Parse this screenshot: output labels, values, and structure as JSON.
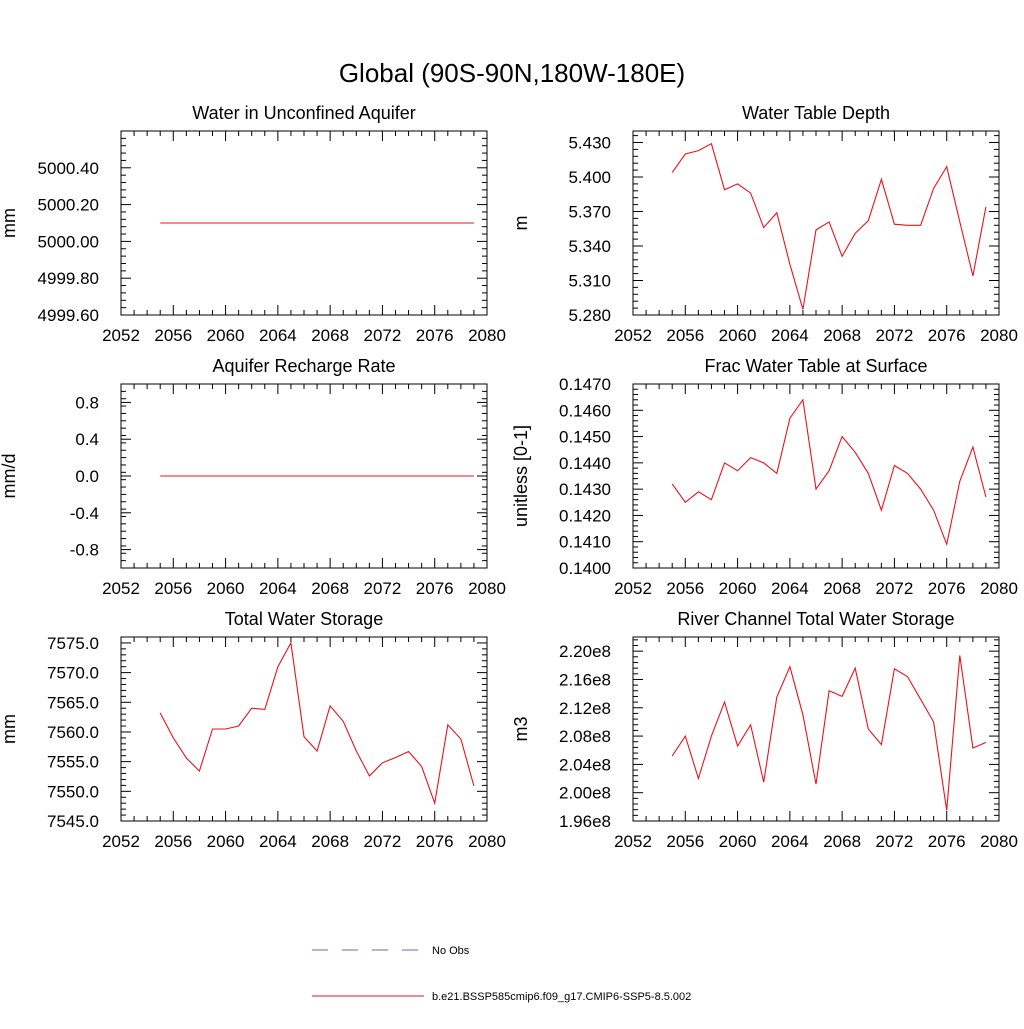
{
  "figure_title": "Global (90S-90N,180W-180E)",
  "colors": {
    "model": "#e8141c",
    "obs": "#5b6fb8",
    "axis": "#000000"
  },
  "legend": {
    "entries": [
      {
        "label": "No Obs",
        "style": "dashed",
        "color": "#5b6fb8"
      },
      {
        "label": "b.e21.BSSP585cmip6.f09_g17.CMIP6-SSP5-8.5.002",
        "style": "solid",
        "color": "#e8141c"
      }
    ]
  },
  "chart_data": [
    {
      "type": "line",
      "title": "Water in Unconfined Aquifer",
      "ylabel": "mm",
      "xlabel": "",
      "xlim": [
        2052,
        2080
      ],
      "ylim": [
        4999.6,
        5000.6
      ],
      "xticks": [
        2052,
        2056,
        2060,
        2064,
        2068,
        2072,
        2076,
        2080
      ],
      "xtick_labels": [
        "2052",
        "2056",
        "2060",
        "2064",
        "2068",
        "2072",
        "2076",
        "2080"
      ],
      "yticks": [
        4999.6,
        4999.8,
        5000.0,
        5000.2,
        5000.4
      ],
      "ytick_labels": [
        "4999.60",
        "4999.80",
        "5000.00",
        "5000.20",
        "5000.40"
      ],
      "series": [
        {
          "x": [
            2055,
            2056,
            2057,
            2058,
            2059,
            2060,
            2061,
            2062,
            2063,
            2064,
            2065,
            2066,
            2067,
            2068,
            2069,
            2070,
            2071,
            2072,
            2073,
            2074,
            2075,
            2076,
            2077,
            2078,
            2079
          ],
          "values": [
            5000.1,
            5000.1,
            5000.1,
            5000.1,
            5000.1,
            5000.1,
            5000.1,
            5000.1,
            5000.1,
            5000.1,
            5000.1,
            5000.1,
            5000.1,
            5000.1,
            5000.1,
            5000.1,
            5000.1,
            5000.1,
            5000.1,
            5000.1,
            5000.1,
            5000.1,
            5000.1,
            5000.1,
            5000.1
          ]
        }
      ]
    },
    {
      "type": "line",
      "title": "Water Table Depth",
      "ylabel": "m",
      "xlabel": "",
      "xlim": [
        2052,
        2080
      ],
      "ylim": [
        5.28,
        5.44
      ],
      "xticks": [
        2052,
        2056,
        2060,
        2064,
        2068,
        2072,
        2076,
        2080
      ],
      "xtick_labels": [
        "2052",
        "2056",
        "2060",
        "2064",
        "2068",
        "2072",
        "2076",
        "2080"
      ],
      "yticks": [
        5.28,
        5.31,
        5.34,
        5.37,
        5.4,
        5.43
      ],
      "ytick_labels": [
        "5.280",
        "5.310",
        "5.340",
        "5.370",
        "5.400",
        "5.430"
      ],
      "series": [
        {
          "x": [
            2055,
            2056,
            2057,
            2058,
            2059,
            2060,
            2061,
            2062,
            2063,
            2064,
            2065,
            2066,
            2067,
            2068,
            2069,
            2070,
            2071,
            2072,
            2073,
            2074,
            2075,
            2076,
            2077,
            2078,
            2079
          ],
          "values": [
            5.404,
            5.42,
            5.423,
            5.429,
            5.389,
            5.394,
            5.386,
            5.356,
            5.369,
            5.324,
            5.285,
            5.354,
            5.361,
            5.331,
            5.351,
            5.362,
            5.398,
            5.359,
            5.358,
            5.358,
            5.39,
            5.409,
            5.361,
            5.314,
            5.374
          ]
        }
      ]
    },
    {
      "type": "line",
      "title": "Aquifer Recharge Rate",
      "ylabel": "mm/d",
      "xlabel": "",
      "xlim": [
        2052,
        2080
      ],
      "ylim": [
        -1.0,
        1.0
      ],
      "xticks": [
        2052,
        2056,
        2060,
        2064,
        2068,
        2072,
        2076,
        2080
      ],
      "xtick_labels": [
        "2052",
        "2056",
        "2060",
        "2064",
        "2068",
        "2072",
        "2076",
        "2080"
      ],
      "yticks": [
        -0.8,
        -0.4,
        0.0,
        0.4,
        0.8
      ],
      "ytick_labels": [
        "-0.8",
        "-0.4",
        "0.0",
        "0.4",
        "0.8"
      ],
      "series": [
        {
          "x": [
            2055,
            2056,
            2057,
            2058,
            2059,
            2060,
            2061,
            2062,
            2063,
            2064,
            2065,
            2066,
            2067,
            2068,
            2069,
            2070,
            2071,
            2072,
            2073,
            2074,
            2075,
            2076,
            2077,
            2078,
            2079
          ],
          "values": [
            0,
            0,
            0,
            0,
            0,
            0,
            0,
            0,
            0,
            0,
            0,
            0,
            0,
            0,
            0,
            0,
            0,
            0,
            0,
            0,
            0,
            0,
            0,
            0,
            0
          ]
        }
      ]
    },
    {
      "type": "line",
      "title": "Frac Water Table at Surface",
      "ylabel": "unitless [0-1]",
      "xlabel": "",
      "xlim": [
        2052,
        2080
      ],
      "ylim": [
        0.14,
        0.147
      ],
      "xticks": [
        2052,
        2056,
        2060,
        2064,
        2068,
        2072,
        2076,
        2080
      ],
      "xtick_labels": [
        "2052",
        "2056",
        "2060",
        "2064",
        "2068",
        "2072",
        "2076",
        "2080"
      ],
      "yticks": [
        0.14,
        0.141,
        0.142,
        0.143,
        0.144,
        0.145,
        0.146,
        0.147
      ],
      "ytick_labels": [
        "0.1400",
        "0.1410",
        "0.1420",
        "0.1430",
        "0.1440",
        "0.1450",
        "0.1460",
        "0.1470"
      ],
      "series": [
        {
          "x": [
            2055,
            2056,
            2057,
            2058,
            2059,
            2060,
            2061,
            2062,
            2063,
            2064,
            2065,
            2066,
            2067,
            2068,
            2069,
            2070,
            2071,
            2072,
            2073,
            2074,
            2075,
            2076,
            2077,
            2078,
            2079
          ],
          "values": [
            0.1432,
            0.1425,
            0.1429,
            0.1426,
            0.144,
            0.1437,
            0.1442,
            0.144,
            0.1436,
            0.1457,
            0.1464,
            0.143,
            0.1437,
            0.145,
            0.1444,
            0.1436,
            0.1422,
            0.1439,
            0.1436,
            0.143,
            0.1422,
            0.1409,
            0.1433,
            0.1446,
            0.1427
          ]
        }
      ]
    },
    {
      "type": "line",
      "title": "Total Water Storage",
      "ylabel": "mm",
      "xlabel": "",
      "xlim": [
        2052,
        2080
      ],
      "ylim": [
        7545,
        7576
      ],
      "xticks": [
        2052,
        2056,
        2060,
        2064,
        2068,
        2072,
        2076,
        2080
      ],
      "xtick_labels": [
        "2052",
        "2056",
        "2060",
        "2064",
        "2068",
        "2072",
        "2076",
        "2080"
      ],
      "yticks": [
        7545,
        7550,
        7555,
        7560,
        7565,
        7570,
        7575
      ],
      "ytick_labels": [
        "7545.0",
        "7550.0",
        "7555.0",
        "7560.0",
        "7565.0",
        "7570.0",
        "7575.0"
      ],
      "series": [
        {
          "x": [
            2055,
            2056,
            2057,
            2058,
            2059,
            2060,
            2061,
            2062,
            2063,
            2064,
            2065,
            2066,
            2067,
            2068,
            2069,
            2070,
            2071,
            2072,
            2073,
            2074,
            2075,
            2076,
            2077,
            2078,
            2079
          ],
          "values": [
            7563.2,
            7559.0,
            7555.6,
            7553.4,
            7560.5,
            7560.5,
            7561.0,
            7564.0,
            7563.8,
            7571.0,
            7575.0,
            7559.2,
            7556.8,
            7564.4,
            7561.8,
            7556.8,
            7552.6,
            7554.8,
            7555.7,
            7556.7,
            7554.2,
            7548.0,
            7561.2,
            7558.8,
            7550.9
          ]
        }
      ]
    },
    {
      "type": "line",
      "title": "River Channel Total Water Storage",
      "ylabel": "m3",
      "xlabel": "",
      "xlim": [
        2052,
        2080
      ],
      "ylim": [
        196000000,
        222000000
      ],
      "xticks": [
        2052,
        2056,
        2060,
        2064,
        2068,
        2072,
        2076,
        2080
      ],
      "xtick_labels": [
        "2052",
        "2056",
        "2060",
        "2064",
        "2068",
        "2072",
        "2076",
        "2080"
      ],
      "yticks": [
        196000000,
        200000000,
        204000000,
        208000000,
        212000000,
        216000000,
        220000000
      ],
      "ytick_labels": [
        "1.96e8",
        "2.00e8",
        "2.04e8",
        "2.08e8",
        "2.12e8",
        "2.16e8",
        "2.20e8"
      ],
      "series": [
        {
          "x": [
            2055,
            2056,
            2057,
            2058,
            2059,
            2060,
            2061,
            2062,
            2063,
            2064,
            2065,
            2066,
            2067,
            2068,
            2069,
            2070,
            2071,
            2072,
            2073,
            2074,
            2075,
            2076,
            2077,
            2078,
            2079
          ],
          "values": [
            205200000,
            208000000,
            202000000,
            208000000,
            212800000,
            206600000,
            209600000,
            201500000,
            213500000,
            217800000,
            211000000,
            201200000,
            214400000,
            213600000,
            217600000,
            209000000,
            206800000,
            217500000,
            216400000,
            213200000,
            210000000,
            197500000,
            219400000,
            206300000,
            207100000
          ]
        }
      ]
    }
  ]
}
